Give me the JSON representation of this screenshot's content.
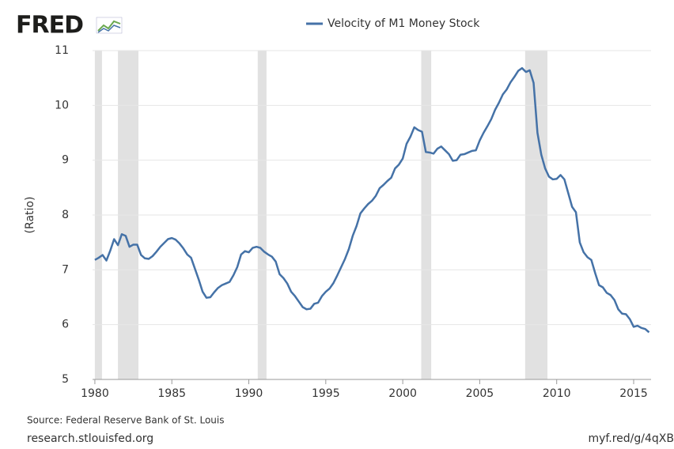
{
  "logo": "FRED",
  "chart_data": {
    "type": "line",
    "ylabel": "(Ratio)",
    "source": "Source: Federal Reserve Bank of St. Louis",
    "site": "research.stlouisfed.org",
    "short_link": "myf.red/g/4qXB",
    "x": [
      1980,
      1980.25,
      1980.5,
      1980.75,
      1981,
      1981.25,
      1981.5,
      1981.75,
      1982,
      1982.25,
      1982.5,
      1982.75,
      1983,
      1983.25,
      1983.5,
      1983.75,
      1984,
      1984.25,
      1984.5,
      1984.75,
      1985,
      1985.25,
      1985.5,
      1985.75,
      1986,
      1986.25,
      1986.5,
      1986.75,
      1987,
      1987.25,
      1987.5,
      1987.75,
      1988,
      1988.25,
      1988.5,
      1988.75,
      1989,
      1989.25,
      1989.5,
      1989.75,
      1990,
      1990.25,
      1990.5,
      1990.75,
      1991,
      1991.25,
      1991.5,
      1991.75,
      1992,
      1992.25,
      1992.5,
      1992.75,
      1993,
      1993.25,
      1993.5,
      1993.75,
      1994,
      1994.25,
      1994.5,
      1994.75,
      1995,
      1995.25,
      1995.5,
      1995.75,
      1996,
      1996.25,
      1996.5,
      1996.75,
      1997,
      1997.25,
      1997.5,
      1997.75,
      1998,
      1998.25,
      1998.5,
      1998.75,
      1999,
      1999.25,
      1999.5,
      1999.75,
      2000,
      2000.25,
      2000.5,
      2000.75,
      2001,
      2001.25,
      2001.5,
      2001.75,
      2002,
      2002.25,
      2002.5,
      2002.75,
      2003,
      2003.25,
      2003.5,
      2003.75,
      2004,
      2004.25,
      2004.5,
      2004.75,
      2005,
      2005.25,
      2005.5,
      2005.75,
      2006,
      2006.25,
      2006.5,
      2006.75,
      2007,
      2007.25,
      2007.5,
      2007.75,
      2008,
      2008.25,
      2008.5,
      2008.75,
      2009,
      2009.25,
      2009.5,
      2009.75,
      2010,
      2010.25,
      2010.5,
      2010.75,
      2011,
      2011.25,
      2011.5,
      2011.75,
      2012,
      2012.25,
      2012.5,
      2012.75,
      2013,
      2013.25,
      2013.5,
      2013.75,
      2014,
      2014.25,
      2014.5,
      2014.75,
      2015,
      2015.25,
      2015.5,
      2015.75,
      2016
    ],
    "series": [
      {
        "name": "Velocity of M1 Money Stock",
        "color": "#4572a7",
        "values": [
          7.18,
          7.22,
          7.27,
          7.17,
          7.35,
          7.56,
          7.45,
          7.65,
          7.62,
          7.42,
          7.46,
          7.46,
          7.27,
          7.21,
          7.2,
          7.25,
          7.33,
          7.42,
          7.49,
          7.56,
          7.58,
          7.55,
          7.48,
          7.39,
          7.28,
          7.22,
          7.02,
          6.82,
          6.6,
          6.49,
          6.5,
          6.59,
          6.67,
          6.72,
          6.75,
          6.78,
          6.9,
          7.05,
          7.28,
          7.34,
          7.32,
          7.4,
          7.42,
          7.4,
          7.33,
          7.28,
          7.24,
          7.15,
          6.92,
          6.85,
          6.75,
          6.6,
          6.52,
          6.42,
          6.32,
          6.28,
          6.29,
          6.38,
          6.4,
          6.52,
          6.6,
          6.66,
          6.76,
          6.9,
          7.05,
          7.2,
          7.38,
          7.62,
          7.8,
          8.03,
          8.12,
          8.2,
          8.26,
          8.35,
          8.49,
          8.55,
          8.62,
          8.68,
          8.85,
          8.92,
          9.03,
          9.3,
          9.43,
          9.6,
          9.55,
          9.52,
          9.15,
          9.14,
          9.12,
          9.21,
          9.25,
          9.18,
          9.11,
          8.99,
          9.0,
          9.1,
          9.11,
          9.14,
          9.17,
          9.18,
          9.36,
          9.5,
          9.62,
          9.75,
          9.92,
          10.05,
          10.2,
          10.29,
          10.42,
          10.52,
          10.63,
          10.68,
          10.61,
          10.64,
          10.41,
          9.5,
          9.1,
          8.85,
          8.7,
          8.65,
          8.66,
          8.73,
          8.65,
          8.4,
          8.15,
          8.05,
          7.5,
          7.32,
          7.23,
          7.18,
          6.94,
          6.72,
          6.68,
          6.58,
          6.54,
          6.45,
          6.28,
          6.2,
          6.19,
          6.1,
          5.96,
          5.98,
          5.94,
          5.92,
          5.86
        ]
      }
    ],
    "recessions": [
      [
        1980.0,
        1980.46
      ],
      [
        1981.5,
        1982.83
      ],
      [
        1990.58,
        1991.15
      ],
      [
        2001.2,
        2001.85
      ],
      [
        2007.95,
        2009.4
      ]
    ],
    "recession_color": "#e1e1e1",
    "xlim": [
      1979.85,
      2016.13
    ],
    "ylim": [
      5,
      11
    ],
    "xticks": [
      1980,
      1985,
      1990,
      1995,
      2000,
      2005,
      2010,
      2015
    ],
    "yticks": [
      5,
      6,
      7,
      8,
      9,
      10,
      11
    ],
    "grid": true
  }
}
